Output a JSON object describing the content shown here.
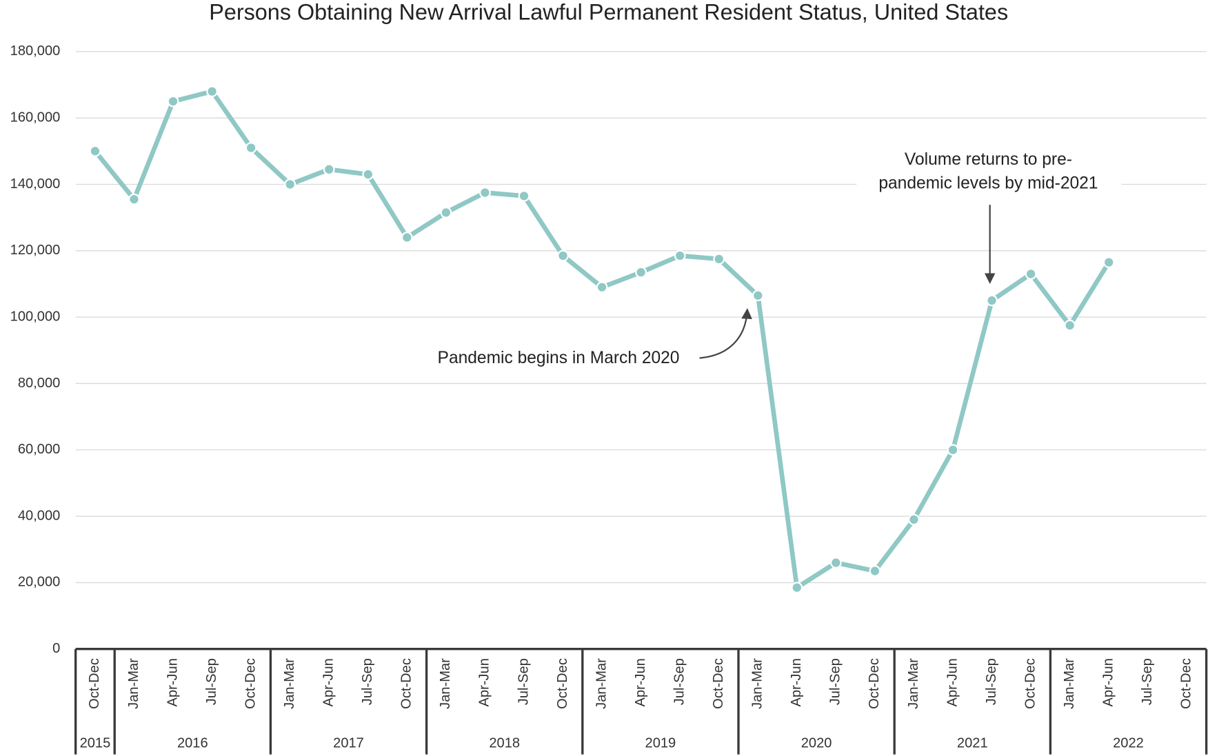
{
  "chart_data": {
    "type": "line",
    "title": "Persons Obtaining New Arrival Lawful Permanent Resident Status, United States",
    "category_groups": [
      {
        "label": "2015",
        "categories": [
          "Oct-Dec"
        ]
      },
      {
        "label": "2016",
        "categories": [
          "Jan-Mar",
          "Apr-Jun",
          "Jul-Sep",
          "Oct-Dec"
        ]
      },
      {
        "label": "2017",
        "categories": [
          "Jan-Mar",
          "Apr-Jun",
          "Jul-Sep",
          "Oct-Dec"
        ]
      },
      {
        "label": "2018",
        "categories": [
          "Jan-Mar",
          "Apr-Jun",
          "Jul-Sep",
          "Oct-Dec"
        ]
      },
      {
        "label": "2019",
        "categories": [
          "Jan-Mar",
          "Apr-Jun",
          "Jul-Sep",
          "Oct-Dec"
        ]
      },
      {
        "label": "2020",
        "categories": [
          "Jan-Mar",
          "Apr-Jun",
          "Jul-Sep",
          "Oct-Dec"
        ]
      },
      {
        "label": "2021",
        "categories": [
          "Jan-Mar",
          "Apr-Jun",
          "Jul-Sep",
          "Oct-Dec"
        ]
      },
      {
        "label": "2022",
        "categories": [
          "Jan-Mar",
          "Apr-Jun",
          "Jul-Sep",
          "Oct-Dec"
        ]
      }
    ],
    "values": [
      150000,
      135500,
      165000,
      168000,
      151000,
      140000,
      144500,
      143000,
      124000,
      131500,
      137500,
      136500,
      118500,
      109000,
      113500,
      118500,
      117500,
      106500,
      18500,
      26000,
      23500,
      39000,
      60000,
      105000,
      113000,
      97500,
      116500,
      null,
      null
    ],
    "color": "#8fc8c5",
    "ylim": [
      0,
      180000
    ],
    "yticks": [
      0,
      {
        "value": 20000,
        "label": "20,000"
      },
      {
        "value": 40000,
        "label": "40,000"
      },
      {
        "value": 60000,
        "label": "60,000"
      },
      {
        "value": 80000,
        "label": "80,000"
      },
      {
        "value": 100000,
        "label": "100,000"
      },
      {
        "value": 120000,
        "label": "120,000"
      },
      {
        "value": 140000,
        "label": "140,000"
      },
      {
        "value": 160000,
        "label": "160,000"
      },
      {
        "value": 180000,
        "label": "180,000"
      }
    ],
    "grid": true,
    "annotations": [
      {
        "text": [
          "Pandemic begins in March 2020"
        ]
      },
      {
        "text": [
          "Volume returns to pre-",
          "pandemic levels by mid-2021"
        ]
      }
    ]
  }
}
